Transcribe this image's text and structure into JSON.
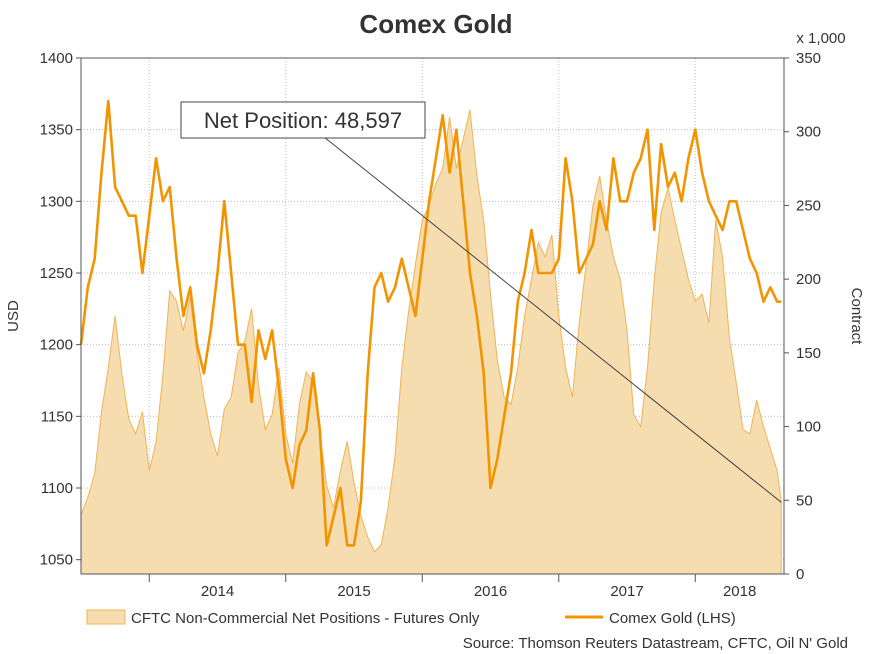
{
  "colors": {
    "gold_line": "#f29400",
    "area_fill": "#f6ddb0",
    "area_stroke": "#efb35a",
    "grid": "#bdbdbd"
  },
  "chart_data": {
    "type": "line",
    "title": "Comex Gold",
    "ylabel_left": "USD",
    "ylabel_right": "Contract",
    "right_axis_multiplier": "x 1,000",
    "ylim_left": [
      1040,
      1400
    ],
    "ylim_right": [
      0,
      350
    ],
    "yticks_left": [
      "1050",
      "1100",
      "1150",
      "1200",
      "1250",
      "1300",
      "1350",
      "1400"
    ],
    "yticks_right": [
      "0",
      "50",
      "100",
      "150",
      "200",
      "250",
      "300",
      "350"
    ],
    "x_range": [
      2013.5,
      2018.65
    ],
    "xticks": [
      "2014",
      "2015",
      "2016",
      "2017",
      "2018"
    ],
    "legend_position": "bottom",
    "grid": true,
    "annotation": {
      "label": "Net Position: 48,597"
    },
    "source": "Source: Thomson Reuters Datastream, CFTC, Oil N' Gold",
    "series": [
      {
        "name": "CFTC Non-Commercial Net Positions - Futures Only",
        "type": "area",
        "axis": "right",
        "x": [
          2013.5,
          2013.55,
          2013.6,
          2013.65,
          2013.7,
          2013.75,
          2013.8,
          2013.85,
          2013.9,
          2013.95,
          2014.0,
          2014.05,
          2014.1,
          2014.15,
          2014.2,
          2014.25,
          2014.3,
          2014.35,
          2014.4,
          2014.45,
          2014.5,
          2014.55,
          2014.6,
          2014.65,
          2014.7,
          2014.75,
          2014.8,
          2014.85,
          2014.9,
          2014.95,
          2015.0,
          2015.05,
          2015.1,
          2015.15,
          2015.2,
          2015.25,
          2015.3,
          2015.35,
          2015.4,
          2015.45,
          2015.5,
          2015.55,
          2015.6,
          2015.65,
          2015.7,
          2015.75,
          2015.8,
          2015.85,
          2015.9,
          2015.95,
          2016.0,
          2016.05,
          2016.1,
          2016.15,
          2016.2,
          2016.25,
          2016.3,
          2016.35,
          2016.4,
          2016.45,
          2016.5,
          2016.55,
          2016.6,
          2016.65,
          2016.7,
          2016.75,
          2016.8,
          2016.85,
          2016.9,
          2016.95,
          2017.0,
          2017.05,
          2017.1,
          2017.15,
          2017.2,
          2017.25,
          2017.3,
          2017.35,
          2017.4,
          2017.45,
          2017.5,
          2017.55,
          2017.6,
          2017.65,
          2017.7,
          2017.75,
          2017.8,
          2017.85,
          2017.9,
          2017.95,
          2018.0,
          2018.05,
          2018.1,
          2018.15,
          2018.2,
          2018.25,
          2018.3,
          2018.35,
          2018.4,
          2018.45,
          2018.5,
          2018.55,
          2018.6,
          2018.63
        ],
        "values": [
          40,
          52,
          68,
          110,
          140,
          175,
          135,
          105,
          95,
          110,
          70,
          90,
          135,
          192,
          185,
          165,
          188,
          150,
          120,
          95,
          80,
          112,
          120,
          150,
          158,
          180,
          128,
          98,
          108,
          140,
          95,
          75,
          115,
          137,
          130,
          95,
          60,
          45,
          70,
          90,
          62,
          40,
          25,
          15,
          20,
          45,
          80,
          140,
          178,
          210,
          240,
          250,
          265,
          275,
          310,
          275,
          295,
          315,
          270,
          240,
          190,
          145,
          120,
          115,
          140,
          175,
          200,
          225,
          215,
          230,
          175,
          140,
          120,
          170,
          210,
          250,
          270,
          240,
          215,
          200,
          165,
          108,
          100,
          140,
          200,
          245,
          262,
          240,
          220,
          200,
          185,
          190,
          170,
          240,
          215,
          160,
          130,
          98,
          95,
          118,
          100,
          85,
          70,
          48.6
        ]
      },
      {
        "name": "Comex Gold (LHS)",
        "type": "line",
        "axis": "left",
        "x": [
          2013.5,
          2013.55,
          2013.6,
          2013.65,
          2013.7,
          2013.75,
          2013.8,
          2013.85,
          2013.9,
          2013.95,
          2014.0,
          2014.05,
          2014.1,
          2014.15,
          2014.2,
          2014.25,
          2014.3,
          2014.35,
          2014.4,
          2014.45,
          2014.5,
          2014.55,
          2014.6,
          2014.65,
          2014.7,
          2014.75,
          2014.8,
          2014.85,
          2014.9,
          2014.95,
          2015.0,
          2015.05,
          2015.1,
          2015.15,
          2015.2,
          2015.25,
          2015.3,
          2015.35,
          2015.4,
          2015.45,
          2015.5,
          2015.55,
          2015.6,
          2015.65,
          2015.7,
          2015.75,
          2015.8,
          2015.85,
          2015.9,
          2015.95,
          2016.0,
          2016.05,
          2016.1,
          2016.15,
          2016.2,
          2016.25,
          2016.3,
          2016.35,
          2016.4,
          2016.45,
          2016.5,
          2016.55,
          2016.6,
          2016.65,
          2016.7,
          2016.75,
          2016.8,
          2016.85,
          2016.9,
          2016.95,
          2017.0,
          2017.05,
          2017.1,
          2017.15,
          2017.2,
          2017.25,
          2017.3,
          2017.35,
          2017.4,
          2017.45,
          2017.5,
          2017.55,
          2017.6,
          2017.65,
          2017.7,
          2017.75,
          2017.8,
          2017.85,
          2017.9,
          2017.95,
          2018.0,
          2018.05,
          2018.1,
          2018.15,
          2018.2,
          2018.25,
          2018.3,
          2018.35,
          2018.4,
          2018.45,
          2018.5,
          2018.55,
          2018.6,
          2018.63
        ],
        "values": [
          1200,
          1240,
          1260,
          1320,
          1370,
          1310,
          1300,
          1290,
          1290,
          1250,
          1290,
          1330,
          1300,
          1310,
          1260,
          1220,
          1240,
          1200,
          1180,
          1210,
          1250,
          1300,
          1250,
          1200,
          1200,
          1160,
          1210,
          1190,
          1210,
          1170,
          1120,
          1100,
          1130,
          1140,
          1180,
          1140,
          1060,
          1080,
          1100,
          1060,
          1060,
          1090,
          1180,
          1240,
          1250,
          1230,
          1240,
          1260,
          1240,
          1220,
          1260,
          1300,
          1330,
          1360,
          1320,
          1350,
          1300,
          1250,
          1220,
          1180,
          1100,
          1120,
          1150,
          1180,
          1230,
          1250,
          1280,
          1250,
          1250,
          1250,
          1260,
          1330,
          1300,
          1250,
          1260,
          1270,
          1300,
          1280,
          1330,
          1300,
          1300,
          1320,
          1330,
          1350,
          1280,
          1340,
          1310,
          1320,
          1300,
          1330,
          1350,
          1320,
          1300,
          1290,
          1280,
          1300,
          1300,
          1280,
          1260,
          1250,
          1230,
          1240,
          1230,
          1230
        ]
      }
    ]
  }
}
